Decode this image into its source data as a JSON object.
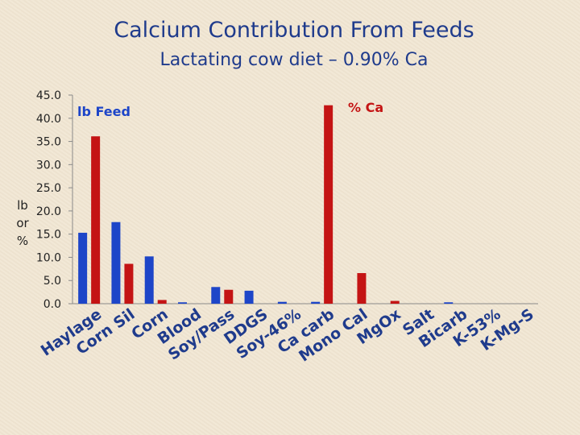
{
  "title": "Calcium Contribution From Feeds",
  "subtitle": "Lactating cow diet – 0.90% Ca",
  "chart_data": {
    "type": "bar",
    "title": "Calcium Contribution From Feeds",
    "subtitle": "Lactating cow diet – 0.90% Ca",
    "ylabel": [
      "lb",
      "or",
      "%"
    ],
    "xlabel": "",
    "ylim": [
      0,
      45
    ],
    "yticks": [
      "0.0",
      "5.0",
      "10.0",
      "15.0",
      "20.0",
      "25.0",
      "30.0",
      "35.0",
      "40.0",
      "45.0"
    ],
    "grid": false,
    "categories": [
      "Haylage",
      "Corn Sil",
      "Corn",
      "Blood",
      "Soy/Pass",
      "DDGS",
      "Soy-46%",
      "Ca carb",
      "Mono Cal",
      "MgOx",
      "Salt",
      "Bicarb",
      "K-53%",
      "K-Mg-S"
    ],
    "series": [
      {
        "name": "lb Feed",
        "color": "#1d45c8",
        "values": [
          15.3,
          17.6,
          10.2,
          0.3,
          3.6,
          2.8,
          0.4,
          0.4,
          0.0,
          0.0,
          0.0,
          0.3,
          0.0,
          0.0
        ]
      },
      {
        "name": "% Ca",
        "color": "#c41414",
        "values": [
          36.1,
          8.6,
          0.8,
          0.0,
          3.0,
          0.0,
          0.0,
          42.8,
          6.6,
          0.6,
          0.0,
          0.0,
          0.0,
          0.0
        ]
      }
    ],
    "annotations": [
      {
        "text": "lb Feed",
        "color": "#1d45c8"
      },
      {
        "text": "% Ca",
        "color": "#c41414"
      }
    ]
  }
}
